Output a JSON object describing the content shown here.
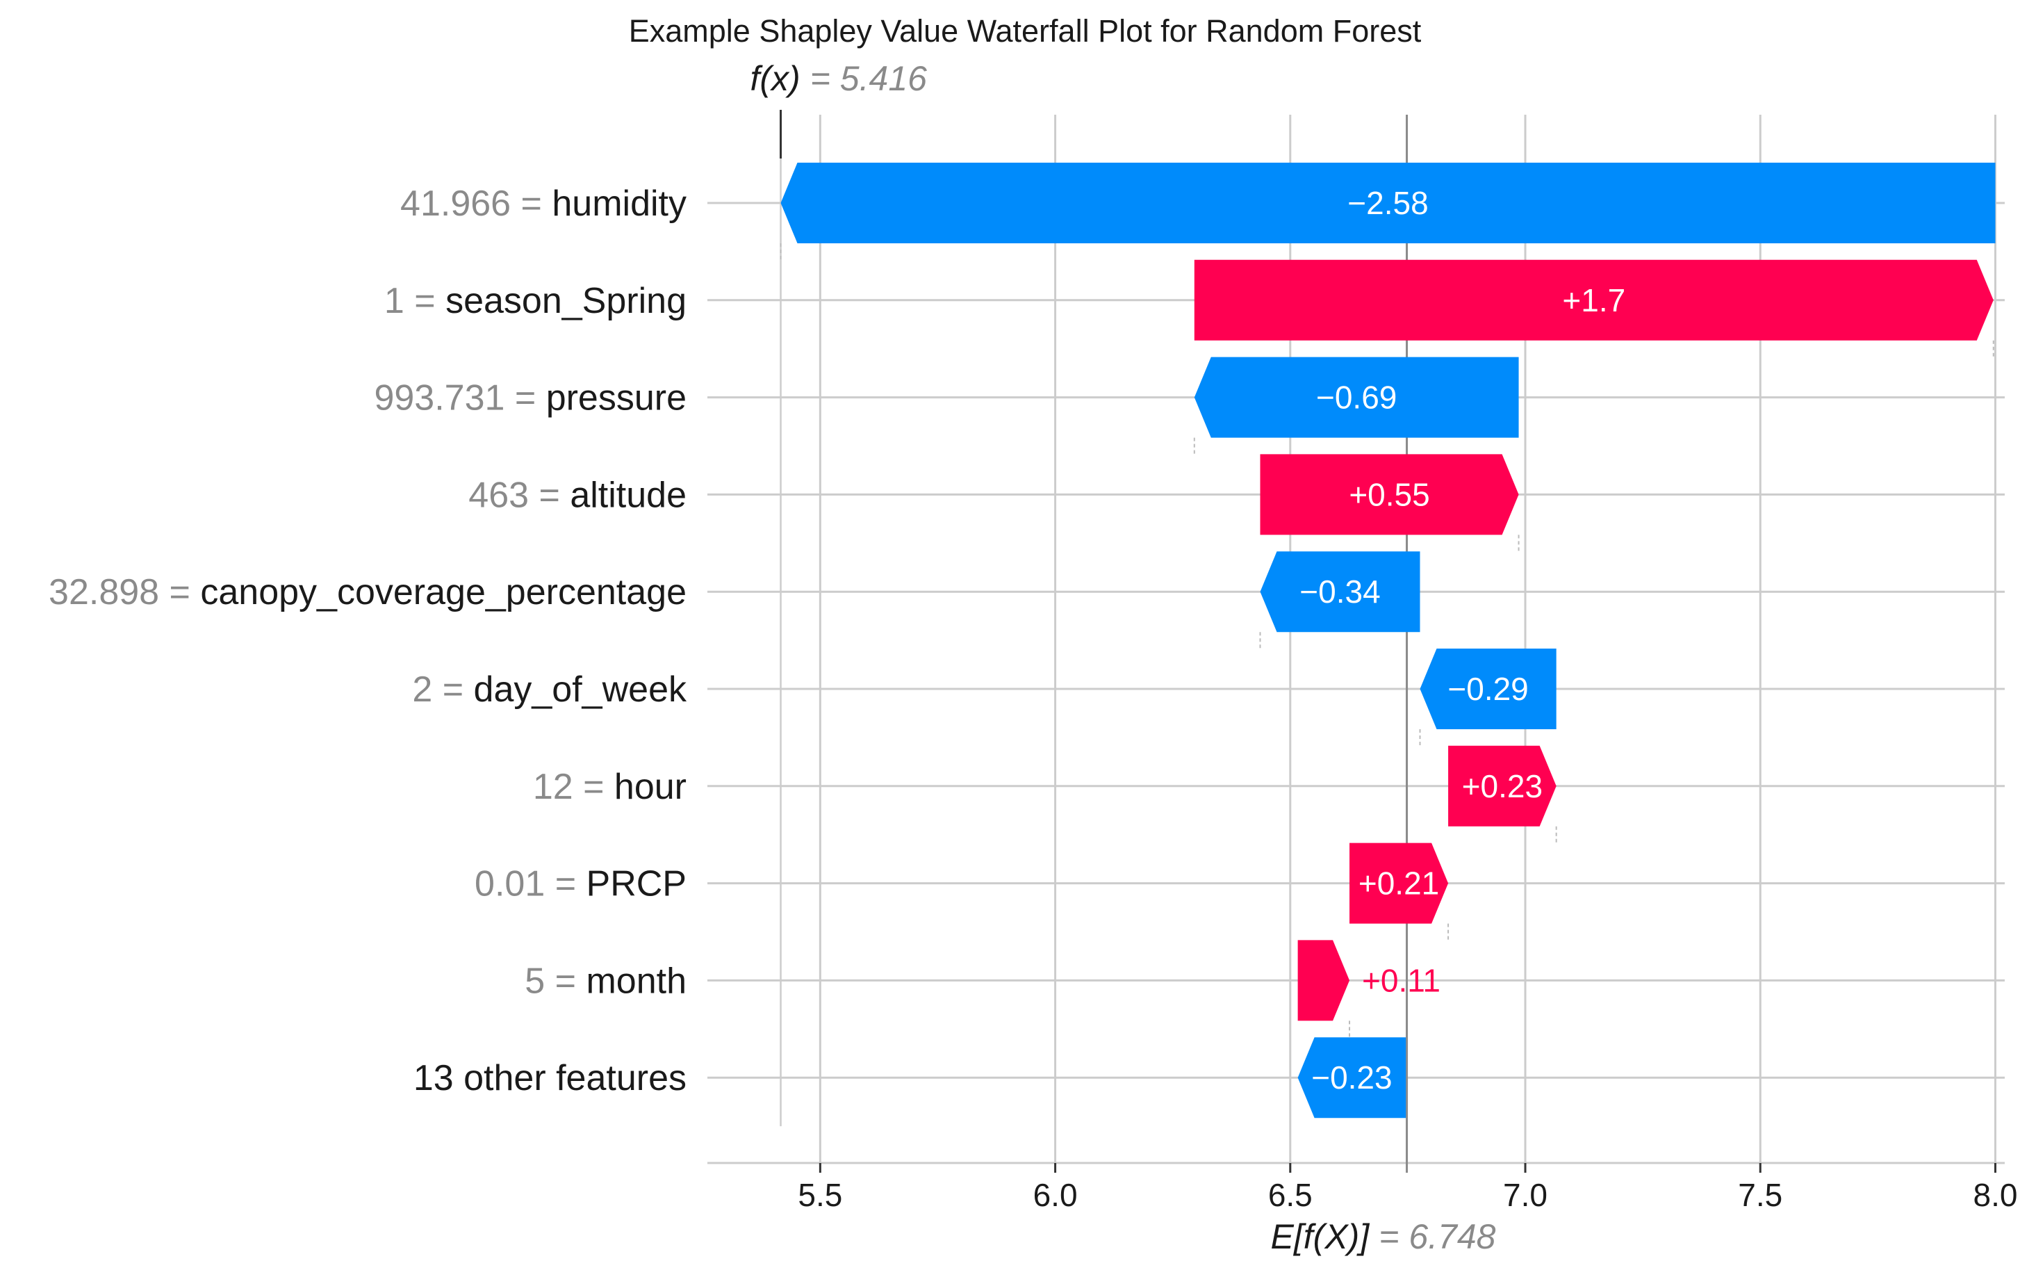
{
  "chart_data": {
    "type": "waterfall",
    "title": "Example Shapley Value Waterfall Plot for Random Forest",
    "base_value": 6.748,
    "output_value": 5.416,
    "base_label_math": "E[f(X)]",
    "base_label_value": "= 6.748",
    "output_label_math": "f(x)",
    "output_label_value": "= 5.416",
    "xlim": [
      5.26,
      8.02
    ],
    "xticks": [
      5.5,
      6.0,
      6.5,
      7.0,
      7.5,
      8.0
    ],
    "xtick_labels": [
      "5.5",
      "6.0",
      "6.5",
      "7.0",
      "7.5",
      "8.0"
    ],
    "grid": true,
    "colors": {
      "positive": "#ff0051",
      "negative": "#008bfb",
      "grid": "#cccccc",
      "value_text": "#8a8a8a"
    },
    "features": [
      {
        "value": "41.966 =",
        "name": "humidity",
        "shap": -2.58,
        "label": "−2.58",
        "start": 8.0,
        "end": 5.416
      },
      {
        "value": "1 =",
        "name": "season_Spring",
        "shap": 1.7,
        "label": "+1.7",
        "start": 6.296,
        "end": 7.996
      },
      {
        "value": "993.731 =",
        "name": "pressure",
        "shap": -0.69,
        "label": "−0.69",
        "start": 6.986,
        "end": 6.296
      },
      {
        "value": "463 =",
        "name": "altitude",
        "shap": 0.55,
        "label": "+0.55",
        "start": 6.436,
        "end": 6.986
      },
      {
        "value": "32.898 =",
        "name": "canopy_coverage_percentage",
        "shap": -0.34,
        "label": "−0.34",
        "start": 6.776,
        "end": 6.436
      },
      {
        "value": "2 =",
        "name": "day_of_week",
        "shap": -0.29,
        "label": "−0.29",
        "start": 7.066,
        "end": 6.776
      },
      {
        "value": "12 =",
        "name": "hour",
        "shap": 0.23,
        "label": "+0.23",
        "start": 6.836,
        "end": 7.066
      },
      {
        "value": "0.01 =",
        "name": "PRCP",
        "shap": 0.21,
        "label": "+0.21",
        "start": 6.626,
        "end": 6.836
      },
      {
        "value": "5 =",
        "name": "month",
        "shap": 0.11,
        "label": "+0.11",
        "start": 6.516,
        "end": 6.626
      },
      {
        "value": "",
        "name": "13 other features",
        "shap": -0.23,
        "label": "−0.23",
        "start": 6.746,
        "end": 6.516
      }
    ]
  }
}
